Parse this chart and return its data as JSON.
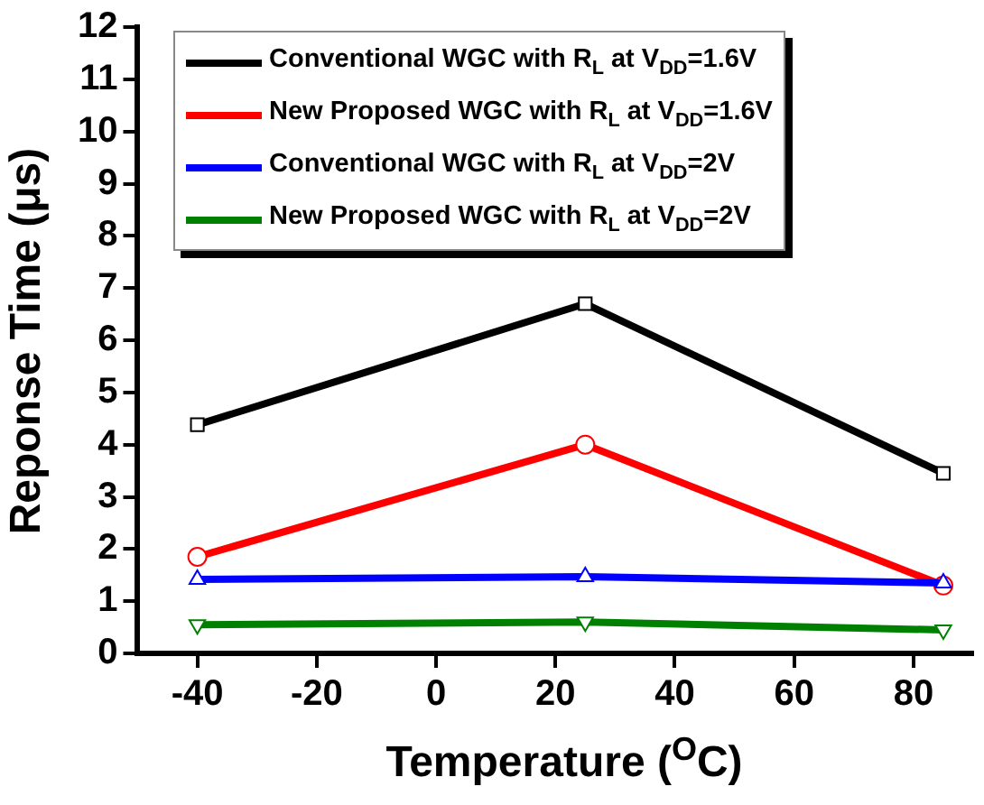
{
  "chart_data": {
    "type": "line",
    "xlabel": "Temperature ($^{O}$C)",
    "ylabel": "Reponse Time (μs)",
    "x": [
      -40,
      25,
      85
    ],
    "xlim": [
      -50,
      90
    ],
    "xticks": [
      -40,
      -20,
      0,
      20,
      40,
      60,
      80
    ],
    "ylim": [
      0,
      12
    ],
    "yticks": [
      0,
      1,
      2,
      3,
      4,
      5,
      6,
      7,
      8,
      9,
      10,
      11,
      12
    ],
    "grid": false,
    "legend": "top",
    "line_style": "solid",
    "series": [
      {
        "name": "Conventional WGC with R$_{L}$ at V$_{DD}$=1.6V",
        "color": "#000000",
        "marker": "square",
        "values": [
          4.38,
          6.7,
          3.45
        ]
      },
      {
        "name": "New Proposed WGC with R$_{L}$ at V$_{DD}$=1.6V",
        "color": "#ff0000",
        "marker": "circle",
        "values": [
          1.85,
          4.0,
          1.3
        ]
      },
      {
        "name": "Conventional WGC with R$_{L}$ at V$_{DD}$=2V",
        "color": "#0000ff",
        "marker": "triangle",
        "values": [
          1.42,
          1.47,
          1.35
        ]
      },
      {
        "name": "New Proposed WGC with R$_{L}$ at V$_{DD}$=2V",
        "color": "#008000",
        "marker": "triangle-down",
        "values": [
          0.55,
          0.6,
          0.45
        ]
      }
    ]
  }
}
